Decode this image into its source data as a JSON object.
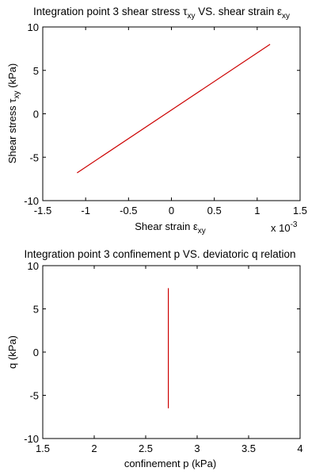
{
  "chart_data": [
    {
      "type": "line",
      "title": {
        "prefix": "Integration point 3 shear stress ",
        "sym1": "τ",
        "sub1": "xy",
        "middle": " VS. shear strain ",
        "sym2": "ε",
        "sub2": "xy"
      },
      "xlabel": {
        "text": "Shear strain ",
        "sym": "ε",
        "sub": "xy"
      },
      "ylabel": {
        "text": "Shear stress ",
        "sym": "τ",
        "sub": "xy",
        "unit": " (kPa)"
      },
      "x_multiplier": "x 10",
      "x_multiplier_exp": "-3",
      "xlim": [
        -1.5,
        1.5
      ],
      "ylim": [
        -10,
        10
      ],
      "xticks": [
        "-1.5",
        "-1",
        "-0.5",
        "0",
        "0.5",
        "1",
        "1.5"
      ],
      "yticks": [
        "-10",
        "-5",
        "0",
        "5",
        "10"
      ],
      "grid": false,
      "series": [
        {
          "color": "#cc0000",
          "x": [
            -1.1,
            1.15
          ],
          "y": [
            -6.8,
            8.0
          ]
        }
      ]
    },
    {
      "type": "line",
      "title": {
        "prefix": "Integration point 3 confinement p VS. deviatoric q relation"
      },
      "xlabel": {
        "text": "confinement p (kPa)"
      },
      "ylabel": {
        "text": "q (kPa)"
      },
      "xlim": [
        1.5,
        4
      ],
      "ylim": [
        -10,
        10
      ],
      "xticks": [
        "1.5",
        "2",
        "2.5",
        "3",
        "3.5",
        "4"
      ],
      "yticks": [
        "-10",
        "-5",
        "0",
        "5",
        "10"
      ],
      "grid": false,
      "series": [
        {
          "color": "#cc0000",
          "x": [
            2.72,
            2.72
          ],
          "y": [
            -6.5,
            7.4
          ]
        }
      ]
    }
  ]
}
